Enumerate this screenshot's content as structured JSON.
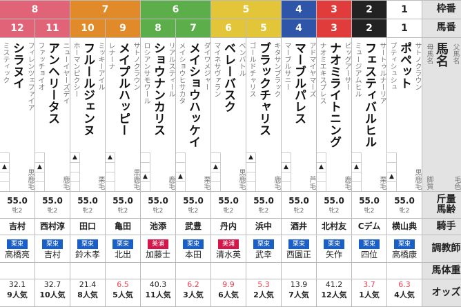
{
  "header": {
    "waku": "枠番",
    "umaban": "馬番",
    "horse_name": "馬名",
    "sire": "父馬名",
    "dam": "母馬名",
    "leg_style": "脚質",
    "coat": "毛色",
    "weight_age": "斤量馬齢",
    "jockey": "騎手",
    "trainer": "調教師",
    "body_weight": "馬体重",
    "odds": "オッズ"
  },
  "waku_colors": {
    "1": "#ffffff",
    "2": "#222222",
    "3": "#e03c3c",
    "4": "#2f55a8",
    "5": "#e3c53a",
    "6": "#5cae4a",
    "7": "#e08a2a",
    "8": "#e06378"
  },
  "stable_colors": {
    "栗東": "#1a5fc7",
    "美浦": "#d4164a"
  },
  "horses": [
    {
      "waku": "8",
      "umaban": "12",
      "name": "シラヌイ",
      "sire": "フィレンツェファイア",
      "dam": "ミスティック",
      "leg": 1,
      "coat": "黒鹿毛",
      "weight": "55.0",
      "sex_age": "牝2",
      "jockey": "吉村",
      "stable": "栗東",
      "trainer": "高橋亮",
      "odds": "32.1",
      "popularity": "9人気"
    },
    {
      "waku": "8",
      "umaban": "11",
      "name": "アンヘリータス",
      "sire": "ニューイヤーズデイ",
      "dam": "ファッチョイオ",
      "leg": 1,
      "coat": "鹿毛",
      "weight": "55.0",
      "sex_age": "牝2",
      "jockey": "西村淳",
      "stable": "栗東",
      "trainer": "吉村",
      "odds": "32.7",
      "popularity": "10人気"
    },
    {
      "waku": "7",
      "umaban": "10",
      "name": "フルールジェンヌ",
      "sire": "ミッキーアイル",
      "dam": "ホーマンピクシー",
      "leg": 0,
      "coat": "栗毛",
      "weight": "55.0",
      "sex_age": "牝2",
      "jockey": "田口",
      "stable": "栗東",
      "trainer": "鈴木孝",
      "odds": "21.4",
      "popularity": "8人気"
    },
    {
      "waku": "7",
      "umaban": "9",
      "name": "メイプルハッピー",
      "sire": "サトノクラウン",
      "dam": "レナーナ",
      "leg": 0,
      "coat": "黒鹿毛",
      "weight": "55.0",
      "sex_age": "牝2",
      "jockey": "亀田",
      "stable": "栗東",
      "trainer": "北出",
      "odds": "6.5",
      "popularity": "5人気"
    },
    {
      "waku": "6",
      "umaban": "8",
      "name": "ショウナンカリス",
      "sire": "リアルスティール",
      "dam": "ロシアンサモワール",
      "leg": 2,
      "coat": "鹿毛",
      "weight": "55.0",
      "sex_age": "牝2",
      "jockey": "池添",
      "stable": "美浦",
      "trainer": "加藤士",
      "odds": "40.3",
      "popularity": "11人気"
    },
    {
      "waku": "6",
      "umaban": "7",
      "name": "メイショウハッケイ",
      "sire": "ダイワメジャー",
      "dam": "メイショウヒサカタ",
      "leg": 2,
      "coat": "栗毛",
      "weight": "55.0",
      "sex_age": "牝2",
      "jockey": "武豊",
      "stable": "栗東",
      "trainer": "本田",
      "odds": "6.2",
      "popularity": "3人気"
    },
    {
      "waku": "5",
      "umaban": "6",
      "name": "ベレーバスク",
      "sire": "ベンバトル",
      "dam": "マイネサヴァラン",
      "leg": 1,
      "coat": "黒鹿毛",
      "weight": "55.0",
      "sex_age": "牝2",
      "jockey": "丹内",
      "stable": "美浦",
      "trainer": "清水英",
      "odds": "9.9",
      "popularity": "6人気"
    },
    {
      "waku": "5",
      "umaban": "5",
      "name": "ブラックチャリス",
      "sire": "キタサンブラック",
      "dam": "ゴールドチャリス",
      "leg": 0,
      "coat": "鹿毛",
      "weight": "55.0",
      "sex_age": "牝2",
      "jockey": "浜中",
      "stable": "栗東",
      "trainer": "武幸",
      "odds": "5.3",
      "popularity": "2人気"
    },
    {
      "waku": "4",
      "umaban": "4",
      "name": "マーブルパレス",
      "sire": "アドマイヤマーズ",
      "dam": "マーブルサニー",
      "leg": 1,
      "coat": "芦毛",
      "weight": "55.0",
      "sex_age": "牝2",
      "jockey": "酒井",
      "stable": "栗東",
      "trainer": "西園正",
      "odds": "13.9",
      "popularity": "7人気"
    },
    {
      "waku": "3",
      "umaban": "3",
      "name": "ナオミライトニング",
      "sire": "ビッグアーサー",
      "dam": "ナオミエキスプレス",
      "leg": 1,
      "coat": "鹿毛",
      "weight": "55.0",
      "sex_age": "牝2",
      "jockey": "北村友",
      "stable": "栗東",
      "trainer": "矢作",
      "odds": "41.2",
      "popularity": "12人気"
    },
    {
      "waku": "2",
      "umaban": "2",
      "name": "フェスティバルヒル",
      "sire": "サートゥルナーリア",
      "dam": "ミュージアムヒル",
      "leg": 1,
      "coat": "栗毛",
      "weight": "55.0",
      "sex_age": "牝2",
      "jockey": "Cデム",
      "stable": "栗東",
      "trainer": "四位",
      "odds": "3.7",
      "popularity": "1人気"
    },
    {
      "waku": "1",
      "umaban": "1",
      "name": "ポペット",
      "sire": "サトノクラウン",
      "dam": "プティシュシュ",
      "leg": 2,
      "coat": "黒鹿毛",
      "weight": "55.0",
      "sex_age": "牝2",
      "jockey": "横山典",
      "stable": "栗東",
      "trainer": "高橋康",
      "odds": "6.3",
      "popularity": "4人気"
    }
  ]
}
